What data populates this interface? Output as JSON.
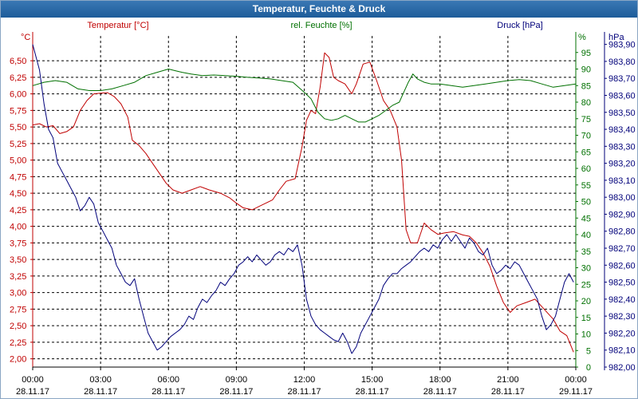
{
  "window": {
    "title": "Temperatur, Feuchte & Druck"
  },
  "colors": {
    "temperature": "#c00000",
    "humidity": "#007000",
    "pressure": "#00007a",
    "grid": "#000000",
    "title_bg": "#2a6aa8"
  },
  "chart_data": {
    "type": "line",
    "title": "Temperatur, Feuchte & Druck",
    "x": {
      "unit": "hours since 28.11.17 00:00",
      "range": [
        0,
        24
      ],
      "ticks": [
        {
          "h": 0,
          "time": "00:00",
          "date": "28.11.17"
        },
        {
          "h": 3,
          "time": "03:00",
          "date": "28.11.17"
        },
        {
          "h": 6,
          "time": "06:00",
          "date": "28.11.17"
        },
        {
          "h": 9,
          "time": "09:00",
          "date": "28.11.17"
        },
        {
          "h": 12,
          "time": "12:00",
          "date": "28.11.17"
        },
        {
          "h": 15,
          "time": "15:00",
          "date": "28.11.17"
        },
        {
          "h": 18,
          "time": "18:00",
          "date": "28.11.17"
        },
        {
          "h": 21,
          "time": "21:00",
          "date": "28.11.17"
        },
        {
          "h": 24,
          "time": "00:00",
          "date": "29.11.17"
        }
      ]
    },
    "axes": {
      "temperature": {
        "header": "Temperatur [°C]",
        "unit": "°C",
        "range": [
          1.875,
          6.875
        ],
        "ticks": [
          "2,00",
          "2,25",
          "2,50",
          "2,75",
          "3,00",
          "3,25",
          "3,50",
          "3,75",
          "4,00",
          "4,25",
          "4,50",
          "4,75",
          "5,00",
          "5,25",
          "5,50",
          "5,75",
          "6,00",
          "6,25",
          "6,50"
        ]
      },
      "humidity": {
        "header": "rel. Feuchte [%]",
        "unit": "%",
        "range": [
          0,
          100
        ],
        "ticks": [
          "0",
          "5",
          "10",
          "15",
          "20",
          "25",
          "30",
          "35",
          "40",
          "45",
          "50",
          "55",
          "60",
          "65",
          "70",
          "75",
          "80",
          "85",
          "90",
          "95"
        ]
      },
      "pressure": {
        "header": "Druck [hPa]",
        "unit": "hPa",
        "range": [
          982.0,
          983.95
        ],
        "ticks": [
          "982,00",
          "982,10",
          "982,20",
          "982,30",
          "982,40",
          "982,50",
          "982,60",
          "982,70",
          "982,80",
          "982,90",
          "983,00",
          "983,10",
          "983,20",
          "983,30",
          "983,40",
          "983,50",
          "983,60",
          "983,70",
          "983,80",
          "983,90"
        ]
      }
    },
    "series": [
      {
        "name": "Temperatur",
        "axis": "temperature",
        "points": [
          [
            0,
            5.53
          ],
          [
            0.3,
            5.55
          ],
          [
            0.6,
            5.5
          ],
          [
            0.9,
            5.52
          ],
          [
            1.2,
            5.4
          ],
          [
            1.5,
            5.43
          ],
          [
            1.8,
            5.5
          ],
          [
            2.1,
            5.75
          ],
          [
            2.4,
            5.9
          ],
          [
            2.7,
            6.0
          ],
          [
            3.0,
            6.01
          ],
          [
            3.3,
            6.02
          ],
          [
            3.6,
            5.96
          ],
          [
            3.9,
            5.85
          ],
          [
            4.2,
            5.65
          ],
          [
            4.4,
            5.3
          ],
          [
            4.7,
            5.22
          ],
          [
            5.0,
            5.1
          ],
          [
            5.3,
            4.95
          ],
          [
            5.6,
            4.8
          ],
          [
            5.9,
            4.65
          ],
          [
            6.2,
            4.55
          ],
          [
            6.6,
            4.5
          ],
          [
            7.0,
            4.55
          ],
          [
            7.4,
            4.6
          ],
          [
            7.8,
            4.55
          ],
          [
            8.3,
            4.5
          ],
          [
            8.7,
            4.43
          ],
          [
            9.0,
            4.35
          ],
          [
            9.3,
            4.28
          ],
          [
            9.7,
            4.25
          ],
          [
            10.0,
            4.3
          ],
          [
            10.3,
            4.35
          ],
          [
            10.6,
            4.4
          ],
          [
            10.9,
            4.55
          ],
          [
            11.2,
            4.68
          ],
          [
            11.6,
            4.72
          ],
          [
            11.9,
            5.2
          ],
          [
            12.1,
            5.6
          ],
          [
            12.3,
            5.75
          ],
          [
            12.5,
            5.7
          ],
          [
            12.7,
            6.1
          ],
          [
            12.9,
            6.62
          ],
          [
            13.1,
            6.55
          ],
          [
            13.3,
            6.25
          ],
          [
            13.5,
            6.2
          ],
          [
            13.8,
            6.15
          ],
          [
            14.1,
            6.0
          ],
          [
            14.3,
            6.15
          ],
          [
            14.6,
            6.45
          ],
          [
            14.9,
            6.48
          ],
          [
            15.2,
            6.2
          ],
          [
            15.5,
            5.9
          ],
          [
            15.8,
            5.75
          ],
          [
            16.1,
            5.5
          ],
          [
            16.3,
            5.0
          ],
          [
            16.5,
            3.95
          ],
          [
            16.7,
            3.75
          ],
          [
            17.0,
            3.75
          ],
          [
            17.3,
            4.05
          ],
          [
            17.6,
            3.95
          ],
          [
            17.9,
            3.88
          ],
          [
            18.2,
            3.9
          ],
          [
            18.6,
            3.92
          ],
          [
            19.0,
            3.87
          ],
          [
            19.3,
            3.85
          ],
          [
            19.6,
            3.75
          ],
          [
            19.9,
            3.6
          ],
          [
            20.2,
            3.4
          ],
          [
            20.5,
            3.1
          ],
          [
            20.8,
            2.85
          ],
          [
            21.1,
            2.7
          ],
          [
            21.4,
            2.8
          ],
          [
            21.8,
            2.85
          ],
          [
            22.2,
            2.9
          ],
          [
            22.6,
            2.75
          ],
          [
            23.0,
            2.6
          ],
          [
            23.3,
            2.42
          ],
          [
            23.6,
            2.35
          ],
          [
            23.9,
            2.1
          ]
        ]
      },
      {
        "name": "rel. Feuchte",
        "axis": "humidity",
        "points": [
          [
            0,
            85
          ],
          [
            0.5,
            86
          ],
          [
            1.0,
            86.5
          ],
          [
            1.5,
            86
          ],
          [
            2.0,
            84
          ],
          [
            2.5,
            83.5
          ],
          [
            3.0,
            83.5
          ],
          [
            3.5,
            84
          ],
          [
            4.0,
            85
          ],
          [
            4.5,
            86
          ],
          [
            5.0,
            88
          ],
          [
            5.5,
            89
          ],
          [
            6.0,
            90
          ],
          [
            6.3,
            89.5
          ],
          [
            6.6,
            89
          ],
          [
            7.0,
            88.5
          ],
          [
            7.5,
            88
          ],
          [
            8.0,
            88.2
          ],
          [
            8.5,
            88
          ],
          [
            9.0,
            87.8
          ],
          [
            9.5,
            87.5
          ],
          [
            10.0,
            87.3
          ],
          [
            10.5,
            87
          ],
          [
            11.0,
            86.5
          ],
          [
            11.5,
            86
          ],
          [
            12.0,
            83
          ],
          [
            12.3,
            81
          ],
          [
            12.6,
            77
          ],
          [
            12.9,
            75
          ],
          [
            13.2,
            74.5
          ],
          [
            13.5,
            75
          ],
          [
            13.8,
            76
          ],
          [
            14.1,
            75
          ],
          [
            14.4,
            74
          ],
          [
            14.7,
            74
          ],
          [
            15.0,
            75
          ],
          [
            15.3,
            76
          ],
          [
            15.6,
            77.5
          ],
          [
            15.9,
            79
          ],
          [
            16.2,
            80
          ],
          [
            16.4,
            83
          ],
          [
            16.6,
            86
          ],
          [
            16.8,
            88.5
          ],
          [
            17.0,
            87
          ],
          [
            17.3,
            86
          ],
          [
            17.6,
            85.5
          ],
          [
            18.0,
            85.5
          ],
          [
            18.5,
            85
          ],
          [
            19.0,
            84.5
          ],
          [
            19.5,
            85
          ],
          [
            20.0,
            85.5
          ],
          [
            20.5,
            86
          ],
          [
            21.0,
            86.5
          ],
          [
            21.5,
            86.8
          ],
          [
            22.0,
            86.5
          ],
          [
            22.5,
            85.5
          ],
          [
            23.0,
            84.5
          ],
          [
            23.5,
            85
          ],
          [
            24.0,
            85.5
          ]
        ]
      },
      {
        "name": "Druck",
        "axis": "pressure",
        "points": [
          [
            0,
            983.9
          ],
          [
            0.3,
            983.75
          ],
          [
            0.5,
            983.55
          ],
          [
            0.7,
            983.4
          ],
          [
            0.9,
            983.35
          ],
          [
            1.1,
            983.2
          ],
          [
            1.3,
            983.15
          ],
          [
            1.5,
            983.1
          ],
          [
            1.7,
            983.05
          ],
          [
            1.9,
            983.0
          ],
          [
            2.1,
            982.92
          ],
          [
            2.3,
            982.95
          ],
          [
            2.5,
            983.0
          ],
          [
            2.7,
            982.96
          ],
          [
            2.9,
            982.85
          ],
          [
            3.1,
            982.8
          ],
          [
            3.3,
            982.75
          ],
          [
            3.5,
            982.7
          ],
          [
            3.7,
            982.6
          ],
          [
            3.9,
            982.55
          ],
          [
            4.1,
            982.5
          ],
          [
            4.3,
            982.48
          ],
          [
            4.5,
            982.52
          ],
          [
            4.7,
            982.4
          ],
          [
            4.9,
            982.3
          ],
          [
            5.1,
            982.2
          ],
          [
            5.3,
            982.15
          ],
          [
            5.5,
            982.1
          ],
          [
            5.7,
            982.12
          ],
          [
            5.9,
            982.15
          ],
          [
            6.1,
            982.18
          ],
          [
            6.3,
            982.2
          ],
          [
            6.5,
            982.22
          ],
          [
            6.7,
            982.25
          ],
          [
            6.9,
            982.3
          ],
          [
            7.1,
            982.28
          ],
          [
            7.3,
            982.35
          ],
          [
            7.5,
            982.4
          ],
          [
            7.7,
            982.38
          ],
          [
            7.9,
            982.42
          ],
          [
            8.1,
            982.45
          ],
          [
            8.3,
            982.5
          ],
          [
            8.5,
            982.48
          ],
          [
            8.7,
            982.52
          ],
          [
            8.9,
            982.55
          ],
          [
            9.1,
            982.6
          ],
          [
            9.3,
            982.62
          ],
          [
            9.5,
            982.65
          ],
          [
            9.7,
            982.62
          ],
          [
            9.9,
            982.66
          ],
          [
            10.1,
            982.63
          ],
          [
            10.3,
            982.6
          ],
          [
            10.5,
            982.62
          ],
          [
            10.7,
            982.66
          ],
          [
            10.9,
            982.68
          ],
          [
            11.1,
            982.66
          ],
          [
            11.3,
            982.7
          ],
          [
            11.5,
            982.68
          ],
          [
            11.7,
            982.72
          ],
          [
            11.9,
            982.6
          ],
          [
            12.1,
            982.4
          ],
          [
            12.3,
            982.3
          ],
          [
            12.5,
            982.25
          ],
          [
            12.7,
            982.22
          ],
          [
            12.9,
            982.2
          ],
          [
            13.1,
            982.18
          ],
          [
            13.3,
            982.16
          ],
          [
            13.5,
            982.15
          ],
          [
            13.7,
            982.2
          ],
          [
            13.9,
            982.15
          ],
          [
            14.1,
            982.08
          ],
          [
            14.3,
            982.12
          ],
          [
            14.5,
            982.2
          ],
          [
            14.7,
            982.25
          ],
          [
            14.9,
            982.3
          ],
          [
            15.1,
            982.35
          ],
          [
            15.3,
            982.4
          ],
          [
            15.5,
            982.48
          ],
          [
            15.7,
            982.52
          ],
          [
            15.9,
            982.55
          ],
          [
            16.1,
            982.55
          ],
          [
            16.3,
            982.58
          ],
          [
            16.5,
            982.6
          ],
          [
            16.7,
            982.62
          ],
          [
            16.9,
            982.65
          ],
          [
            17.1,
            982.68
          ],
          [
            17.3,
            982.7
          ],
          [
            17.5,
            982.68
          ],
          [
            17.7,
            982.72
          ],
          [
            17.9,
            982.7
          ],
          [
            18.1,
            982.75
          ],
          [
            18.3,
            982.78
          ],
          [
            18.5,
            982.74
          ],
          [
            18.7,
            982.78
          ],
          [
            18.9,
            982.74
          ],
          [
            19.1,
            982.7
          ],
          [
            19.3,
            982.76
          ],
          [
            19.5,
            982.73
          ],
          [
            19.7,
            982.68
          ],
          [
            19.9,
            982.66
          ],
          [
            20.1,
            982.7
          ],
          [
            20.3,
            982.6
          ],
          [
            20.5,
            982.55
          ],
          [
            20.7,
            982.57
          ],
          [
            20.9,
            982.6
          ],
          [
            21.1,
            982.58
          ],
          [
            21.3,
            982.62
          ],
          [
            21.5,
            982.6
          ],
          [
            21.7,
            982.55
          ],
          [
            21.9,
            982.5
          ],
          [
            22.1,
            982.45
          ],
          [
            22.3,
            982.4
          ],
          [
            22.5,
            982.3
          ],
          [
            22.7,
            982.22
          ],
          [
            22.9,
            982.25
          ],
          [
            23.1,
            982.3
          ],
          [
            23.3,
            982.4
          ],
          [
            23.5,
            982.5
          ],
          [
            23.7,
            982.55
          ],
          [
            23.9,
            982.5
          ]
        ]
      }
    ],
    "grid": true
  }
}
